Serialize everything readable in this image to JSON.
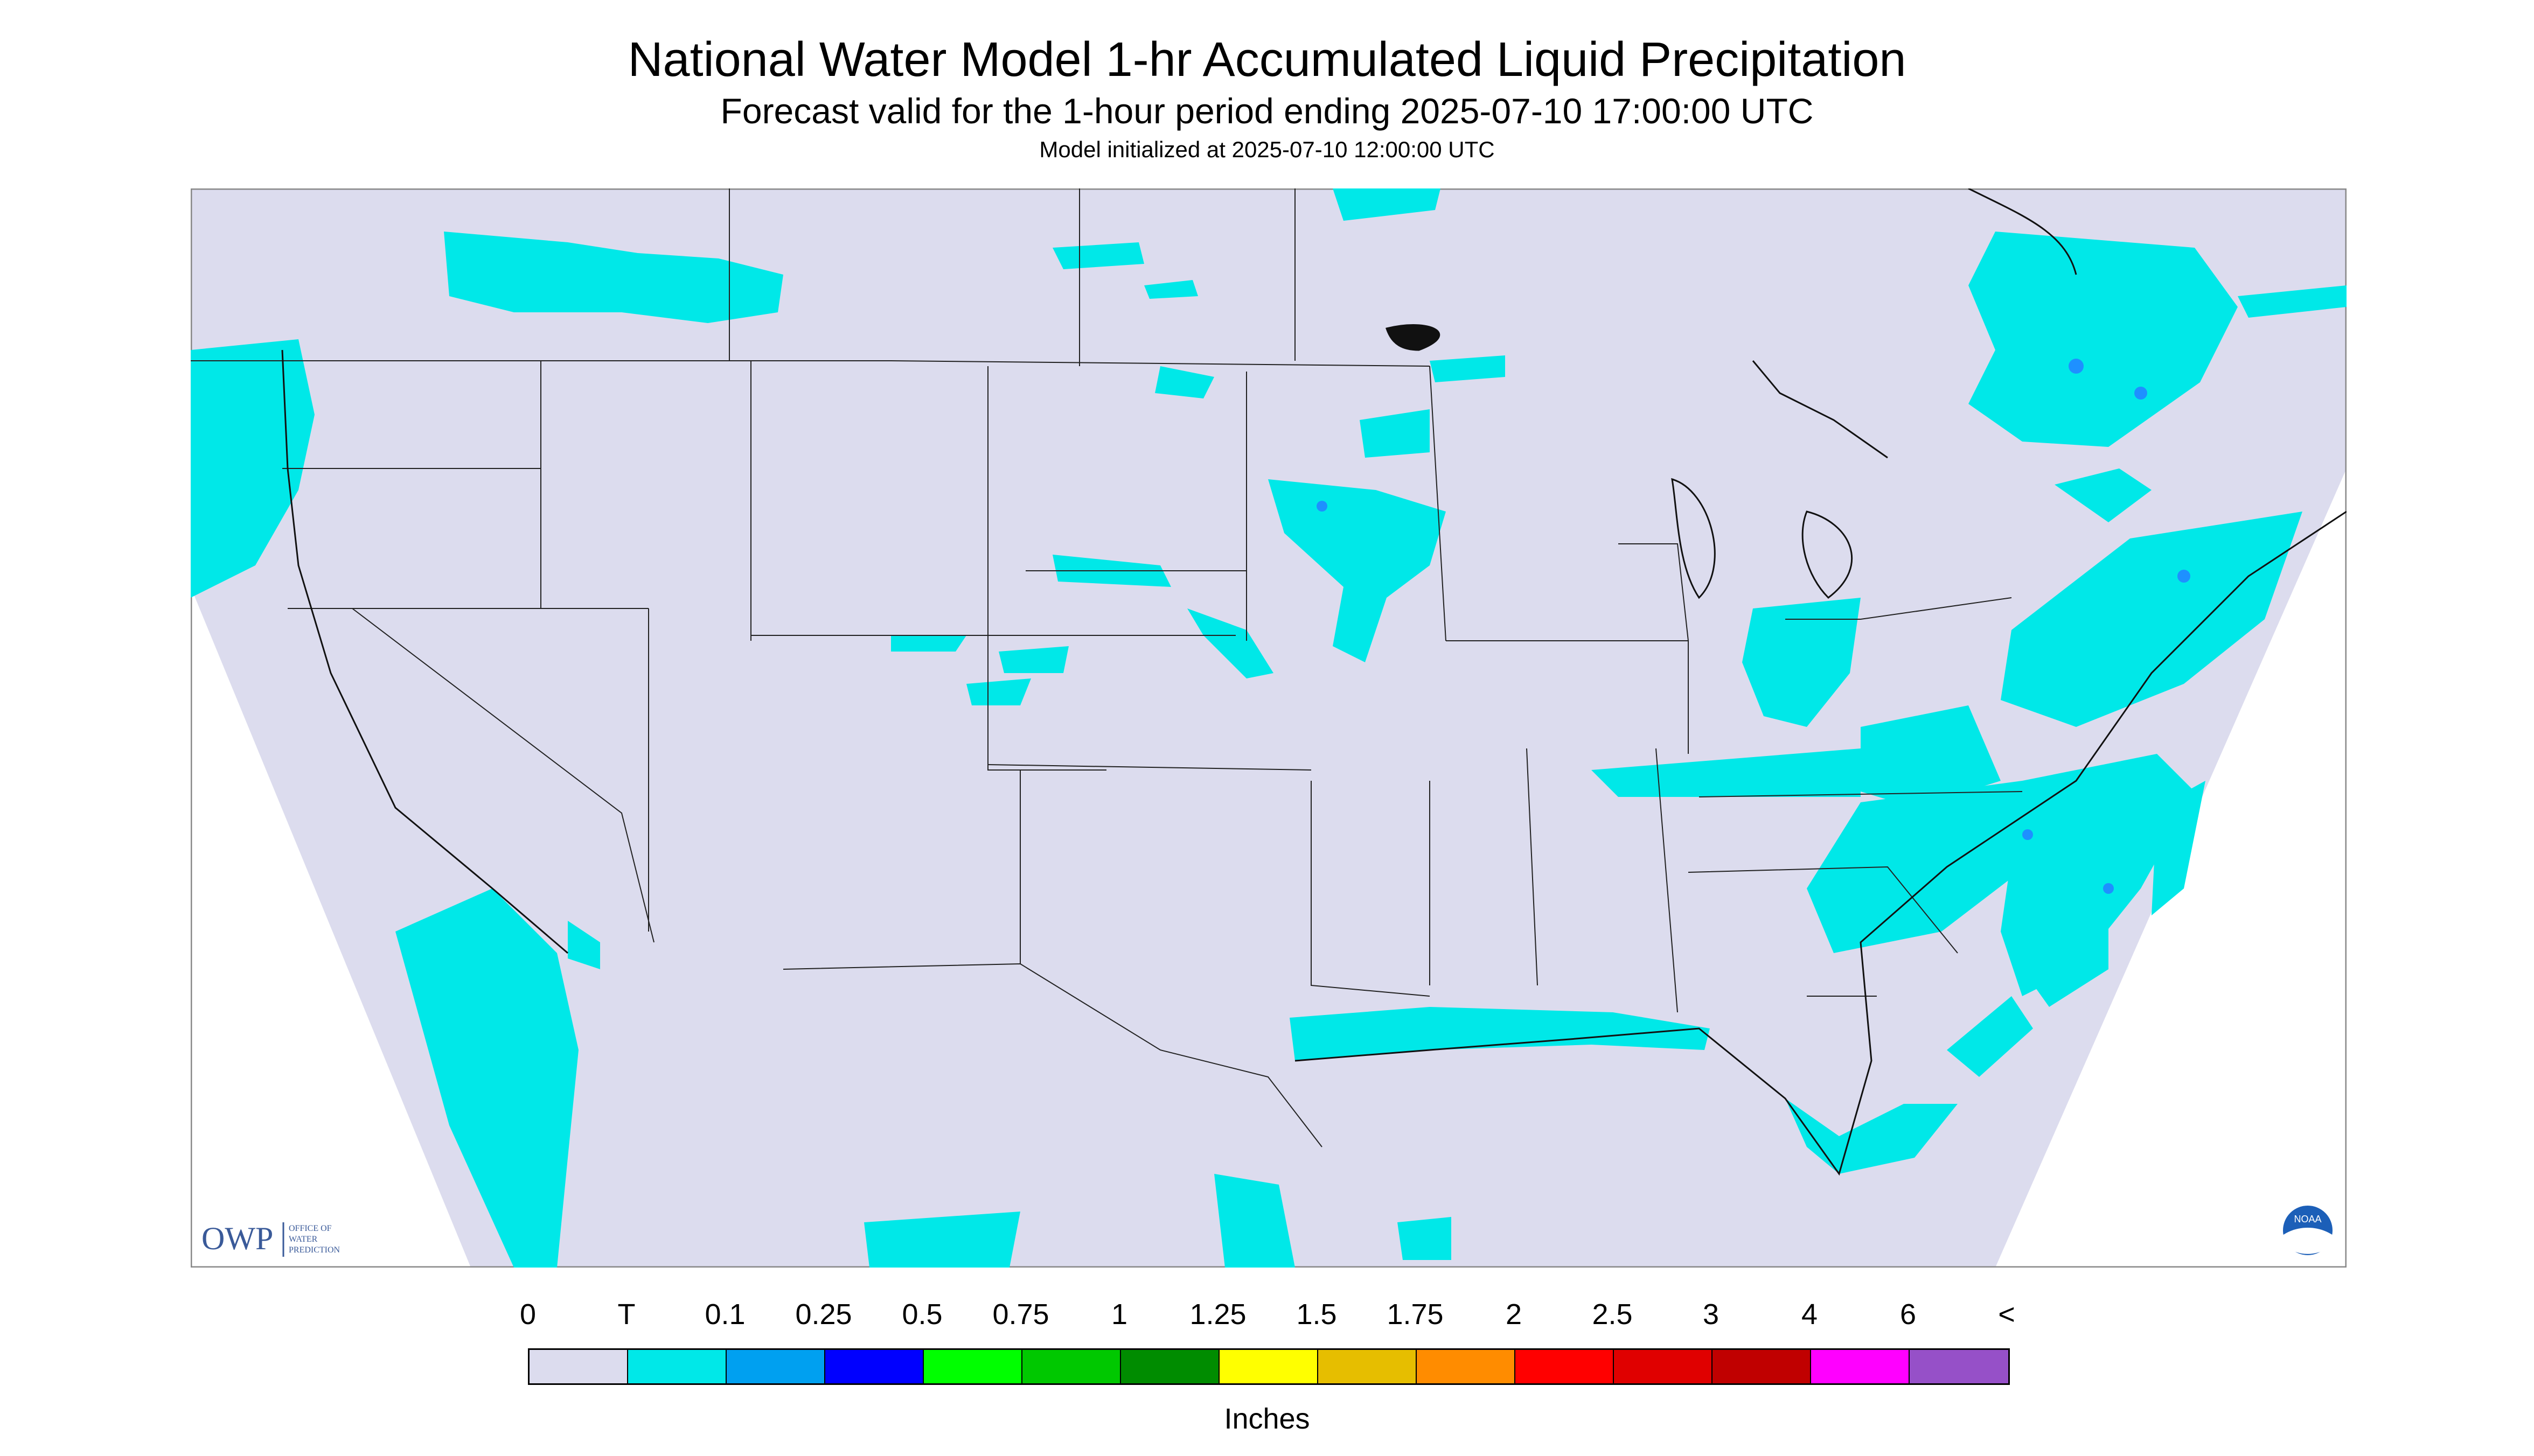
{
  "header": {
    "title": "National Water Model 1-hr Accumulated Liquid Precipitation",
    "subtitle": "Forecast valid for the 1-hour period ending 2025-07-10 17:00:00 UTC",
    "init_text": "Model initialized at 2025-07-10 12:00:00 UTC"
  },
  "map": {
    "background_color": "#dcdcee",
    "precip_trace_color": "#00e8e8",
    "precip_light_color": "#1e90ff",
    "logos": {
      "owp": {
        "acronym": "OWP",
        "line1": "OFFICE OF",
        "line2": "WATER",
        "line3": "PREDICTION"
      },
      "noaa": {
        "text": "NOAA"
      }
    }
  },
  "legend": {
    "tick_labels": [
      "0",
      "T",
      "0.1",
      "0.25",
      "0.5",
      "0.75",
      "1",
      "1.25",
      "1.5",
      "1.75",
      "2",
      "2.5",
      "3",
      "4",
      "6",
      "<"
    ],
    "colors": [
      "#dcdcee",
      "#00e8e8",
      "#00a0f0",
      "#0000ff",
      "#00ff00",
      "#00c800",
      "#008c00",
      "#ffff00",
      "#e6be00",
      "#ff8c00",
      "#ff0000",
      "#e00000",
      "#c00000",
      "#ff00ff",
      "#9650c8"
    ],
    "units": "Inches"
  }
}
